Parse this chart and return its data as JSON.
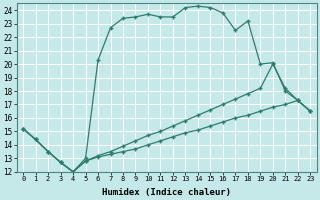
{
  "xlabel": "Humidex (Indice chaleur)",
  "bg_color": "#c5e8e8",
  "grid_color": "#ffffff",
  "line_color": "#2d7d6e",
  "xlim": [
    -0.5,
    23.5
  ],
  "ylim": [
    12,
    24.5
  ],
  "xticks": [
    0,
    1,
    2,
    3,
    4,
    5,
    6,
    7,
    8,
    9,
    10,
    11,
    12,
    13,
    14,
    15,
    16,
    17,
    18,
    19,
    20,
    21,
    22,
    23
  ],
  "yticks": [
    12,
    13,
    14,
    15,
    16,
    17,
    18,
    19,
    20,
    21,
    22,
    23,
    24
  ],
  "line3_x": [
    0,
    1,
    2,
    3,
    4,
    5,
    6,
    7,
    8,
    9,
    10,
    11,
    12,
    13,
    14,
    15,
    16,
    17,
    18,
    19,
    20,
    21,
    22,
    23
  ],
  "line3_y": [
    15.2,
    14.4,
    13.5,
    12.7,
    12.0,
    13.0,
    20.3,
    22.7,
    23.4,
    23.5,
    23.7,
    23.5,
    23.5,
    24.2,
    24.3,
    24.2,
    23.8,
    22.5,
    23.2,
    20.0,
    20.1,
    18.0,
    17.3,
    16.5
  ],
  "line1_x": [
    0,
    1,
    2,
    3,
    4,
    5,
    6,
    7,
    8,
    9,
    10,
    11,
    12,
    13,
    14,
    15,
    16,
    17,
    18,
    19,
    20,
    21,
    22,
    23
  ],
  "line1_y": [
    15.2,
    14.4,
    13.5,
    12.7,
    12.0,
    12.8,
    13.1,
    13.3,
    13.5,
    13.7,
    14.0,
    14.3,
    14.6,
    14.9,
    15.1,
    15.4,
    15.7,
    16.0,
    16.2,
    16.5,
    16.8,
    17.0,
    17.3,
    16.5
  ],
  "line2_x": [
    0,
    1,
    2,
    3,
    4,
    5,
    6,
    7,
    8,
    9,
    10,
    11,
    12,
    13,
    14,
    15,
    16,
    17,
    18,
    19,
    20,
    21,
    22,
    23
  ],
  "line2_y": [
    15.2,
    14.4,
    13.5,
    12.7,
    12.0,
    12.8,
    13.2,
    13.5,
    13.9,
    14.3,
    14.7,
    15.0,
    15.4,
    15.8,
    16.2,
    16.6,
    17.0,
    17.4,
    17.8,
    18.2,
    20.0,
    18.2,
    17.3,
    16.5
  ]
}
